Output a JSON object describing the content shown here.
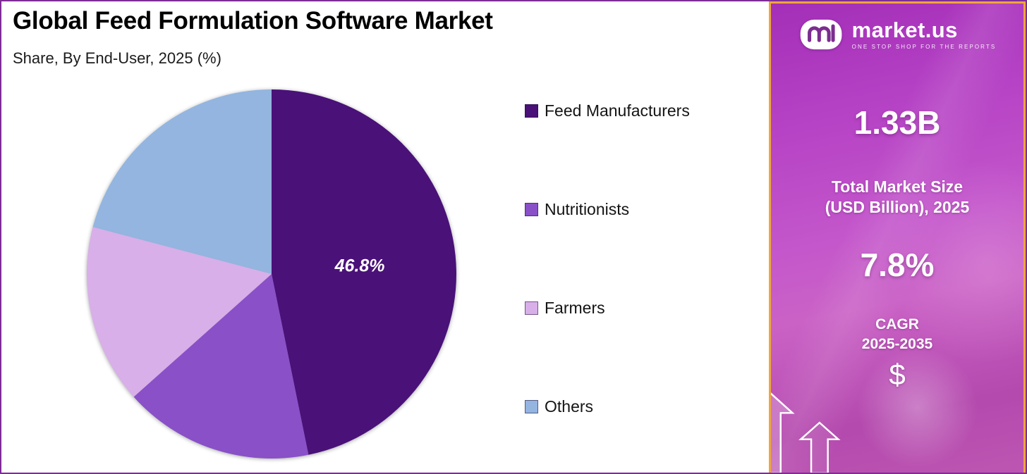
{
  "chart_data": {
    "type": "pie",
    "title": "Global Feed Formulation Software Market",
    "subtitle": "Share, By End-User, 2025 (%)",
    "unit": "%",
    "legend_position": "right",
    "start_angle_deg": 0,
    "direction": "clockwise",
    "slices": [
      {
        "name": "Feed Manufacturers",
        "value": 46.8,
        "data_label": "46.8%",
        "color": "#4a1179"
      },
      {
        "name": "Nutritionists",
        "value": 16.6,
        "data_label": "",
        "color": "#8950c8"
      },
      {
        "name": "Farmers",
        "value": 15.7,
        "data_label": "",
        "color": "#d8afe8"
      },
      {
        "name": "Others",
        "value": 20.9,
        "data_label": "",
        "color": "#93b5e0"
      }
    ]
  },
  "sidebar": {
    "logo": {
      "brand": "market.us",
      "tagline": "ONE STOP SHOP FOR THE REPORTS"
    },
    "market_size": {
      "value": "1.33B",
      "label_line1": "Total Market Size",
      "label_line2": "(USD Billion), 2025"
    },
    "cagr": {
      "value": "7.8%",
      "label_line1": "CAGR",
      "label_line2": "2025-2035"
    },
    "dollar_symbol": "$",
    "colors": {
      "panel_gradient_top": "#a42fb8",
      "panel_gradient_bottom": "#bd56b2",
      "panel_border": "#f1a53d"
    }
  },
  "frame": {
    "outer_border_color": "#7f2b96",
    "background": "#ffffff"
  }
}
